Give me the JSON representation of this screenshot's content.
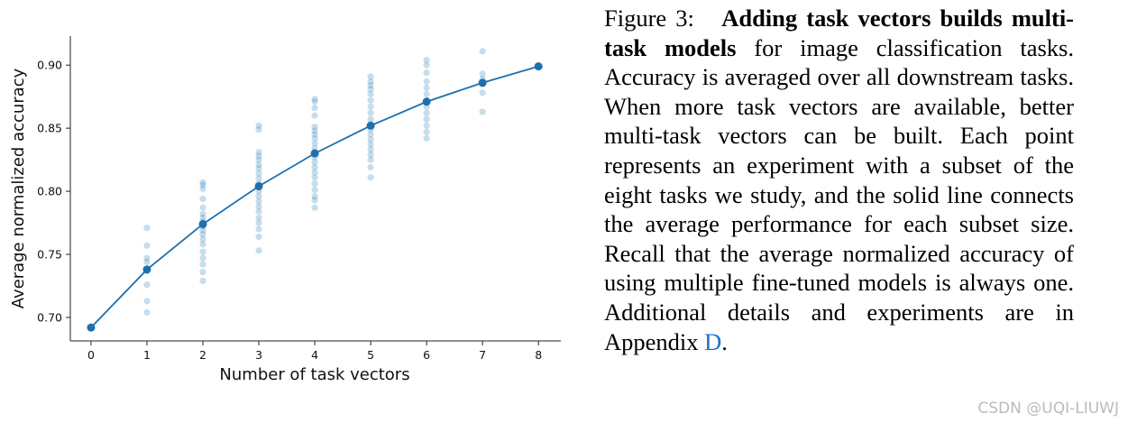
{
  "chart_data": {
    "type": "scatter",
    "xlabel": "Number of task vectors",
    "ylabel": "Average normalized accuracy",
    "xlim": [
      -0.37,
      8.4
    ],
    "ylim": [
      0.6814,
      0.923
    ],
    "xticks": [
      0,
      1,
      2,
      3,
      4,
      5,
      6,
      7,
      8
    ],
    "yticks": [
      {
        "value": 0.7,
        "label": "0.70"
      },
      0.75,
      {
        "value": 0.8,
        "label": "0.80"
      },
      0.85,
      {
        "value": 0.9,
        "label": "0.90"
      }
    ],
    "series": [
      {
        "type": "scatter",
        "color": "#1f77b4",
        "opacity": 0.25,
        "x": [
          1,
          1,
          1,
          1,
          1,
          1,
          1,
          1,
          2,
          2,
          2,
          2,
          2,
          2,
          2,
          2,
          2,
          2,
          2,
          2,
          2,
          2,
          2,
          2,
          2,
          2,
          3,
          3,
          3,
          3,
          3,
          3,
          3,
          3,
          3,
          3,
          3,
          3,
          3,
          3,
          3,
          3,
          3,
          3,
          3,
          3,
          3,
          4,
          4,
          4,
          4,
          4,
          4,
          4,
          4,
          4,
          4,
          4,
          4,
          4,
          4,
          4,
          4,
          4,
          4,
          4,
          4,
          4,
          5,
          5,
          5,
          5,
          5,
          5,
          5,
          5,
          5,
          5,
          5,
          5,
          5,
          5,
          5,
          5,
          5,
          5,
          5,
          6,
          6,
          6,
          6,
          6,
          6,
          6,
          6,
          6,
          6,
          6,
          6,
          6,
          7,
          7,
          7,
          7,
          7,
          7
        ],
        "values": [
          0.771,
          0.757,
          0.747,
          0.744,
          0.737,
          0.726,
          0.713,
          0.704,
          0.807,
          0.805,
          0.802,
          0.794,
          0.787,
          0.782,
          0.779,
          0.776,
          0.772,
          0.769,
          0.766,
          0.762,
          0.758,
          0.752,
          0.747,
          0.742,
          0.736,
          0.729,
          0.852,
          0.849,
          0.831,
          0.828,
          0.825,
          0.821,
          0.818,
          0.814,
          0.81,
          0.806,
          0.803,
          0.8,
          0.796,
          0.792,
          0.788,
          0.784,
          0.779,
          0.775,
          0.77,
          0.764,
          0.753,
          0.873,
          0.871,
          0.866,
          0.86,
          0.851,
          0.848,
          0.845,
          0.842,
          0.838,
          0.834,
          0.831,
          0.827,
          0.823,
          0.819,
          0.815,
          0.811,
          0.806,
          0.801,
          0.796,
          0.793,
          0.787,
          0.891,
          0.887,
          0.884,
          0.881,
          0.877,
          0.872,
          0.867,
          0.862,
          0.857,
          0.853,
          0.849,
          0.845,
          0.841,
          0.837,
          0.833,
          0.829,
          0.825,
          0.819,
          0.811,
          0.904,
          0.9,
          0.894,
          0.887,
          0.882,
          0.877,
          0.872,
          0.867,
          0.862,
          0.857,
          0.852,
          0.847,
          0.842,
          0.911,
          0.893,
          0.889,
          0.885,
          0.878,
          0.863
        ]
      },
      {
        "type": "line",
        "color": "#1f6fad",
        "x": [
          0,
          1,
          2,
          3,
          4,
          5,
          6,
          7,
          8
        ],
        "values": [
          0.692,
          0.738,
          0.774,
          0.804,
          0.83,
          0.852,
          0.871,
          0.886,
          0.899
        ]
      }
    ]
  },
  "caption": {
    "label": "Figure 3:",
    "bold": "Adding task vectors builds multi-task models",
    "text": "for image classification tasks. Accuracy is averaged over all downstream tasks. When more task vectors are available, better multi-task vectors can be built. Each point represents an experiment with a subset of the eight tasks we study, and the solid line connects the average performance for each subset size. Recall that the average normalized accuracy of using multiple fine-tuned models is always one. Additional details and experiments are in Appendix",
    "link": "D",
    "end": "."
  },
  "watermark": "CSDN @UQI-LIUWJ"
}
